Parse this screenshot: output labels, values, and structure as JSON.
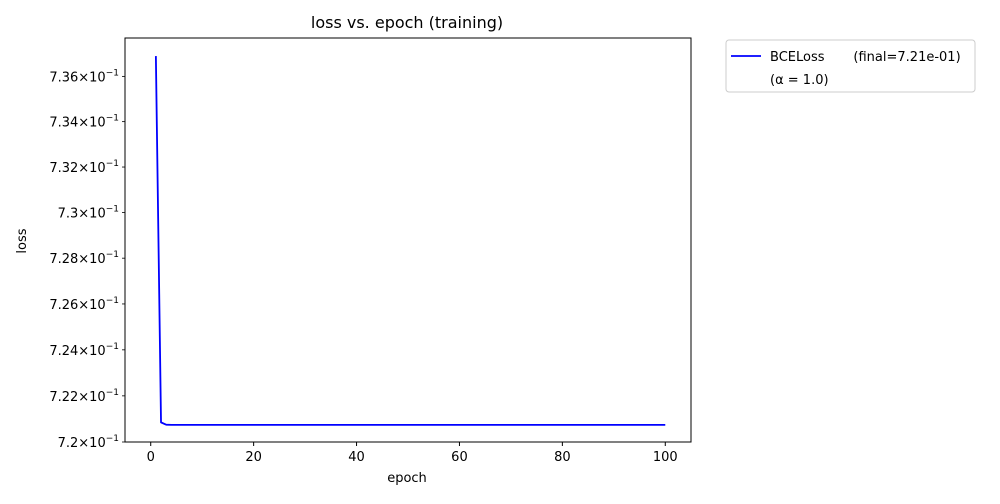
{
  "chart_data": {
    "type": "line",
    "title": "loss vs. epoch (training)",
    "xlabel": "epoch",
    "ylabel": "loss",
    "xlim": [
      -5,
      105
    ],
    "ylim": [
      0.72,
      0.7377
    ],
    "y_scale": "log",
    "grid": false,
    "legend_position": "outside top-right",
    "xticks": [
      {
        "value": 0,
        "label": "0"
      },
      {
        "value": 20,
        "label": "20"
      },
      {
        "value": 40,
        "label": "40"
      },
      {
        "value": 60,
        "label": "60"
      },
      {
        "value": 80,
        "label": "80"
      },
      {
        "value": 100,
        "label": "100"
      }
    ],
    "yticks": [
      {
        "value": 0.72,
        "mant": "7.2",
        "exp": "−1"
      },
      {
        "value": 0.722,
        "mant": "7.22",
        "exp": "−1"
      },
      {
        "value": 0.724,
        "mant": "7.24",
        "exp": "−1"
      },
      {
        "value": 0.726,
        "mant": "7.26",
        "exp": "−1"
      },
      {
        "value": 0.728,
        "mant": "7.28",
        "exp": "−1"
      },
      {
        "value": 0.73,
        "mant": "7.3",
        "exp": "−1"
      },
      {
        "value": 0.732,
        "mant": "7.32",
        "exp": "−1"
      },
      {
        "value": 0.734,
        "mant": "7.34",
        "exp": "−1"
      },
      {
        "value": 0.736,
        "mant": "7.36",
        "exp": "−1"
      }
    ],
    "series": [
      {
        "name": "BCELoss",
        "color": "#0000ff",
        "legend_line1": "BCELoss       (final=7.21e-01)",
        "legend_line2": "(α = 1.0)",
        "x": [
          1,
          2,
          3,
          4,
          5,
          10,
          20,
          30,
          40,
          50,
          60,
          70,
          80,
          90,
          100
        ],
        "y": [
          0.7369,
          0.72085,
          0.72075,
          0.72074,
          0.72074,
          0.72074,
          0.72074,
          0.72074,
          0.72074,
          0.72074,
          0.72074,
          0.72074,
          0.72074,
          0.72074,
          0.72074
        ]
      }
    ]
  }
}
